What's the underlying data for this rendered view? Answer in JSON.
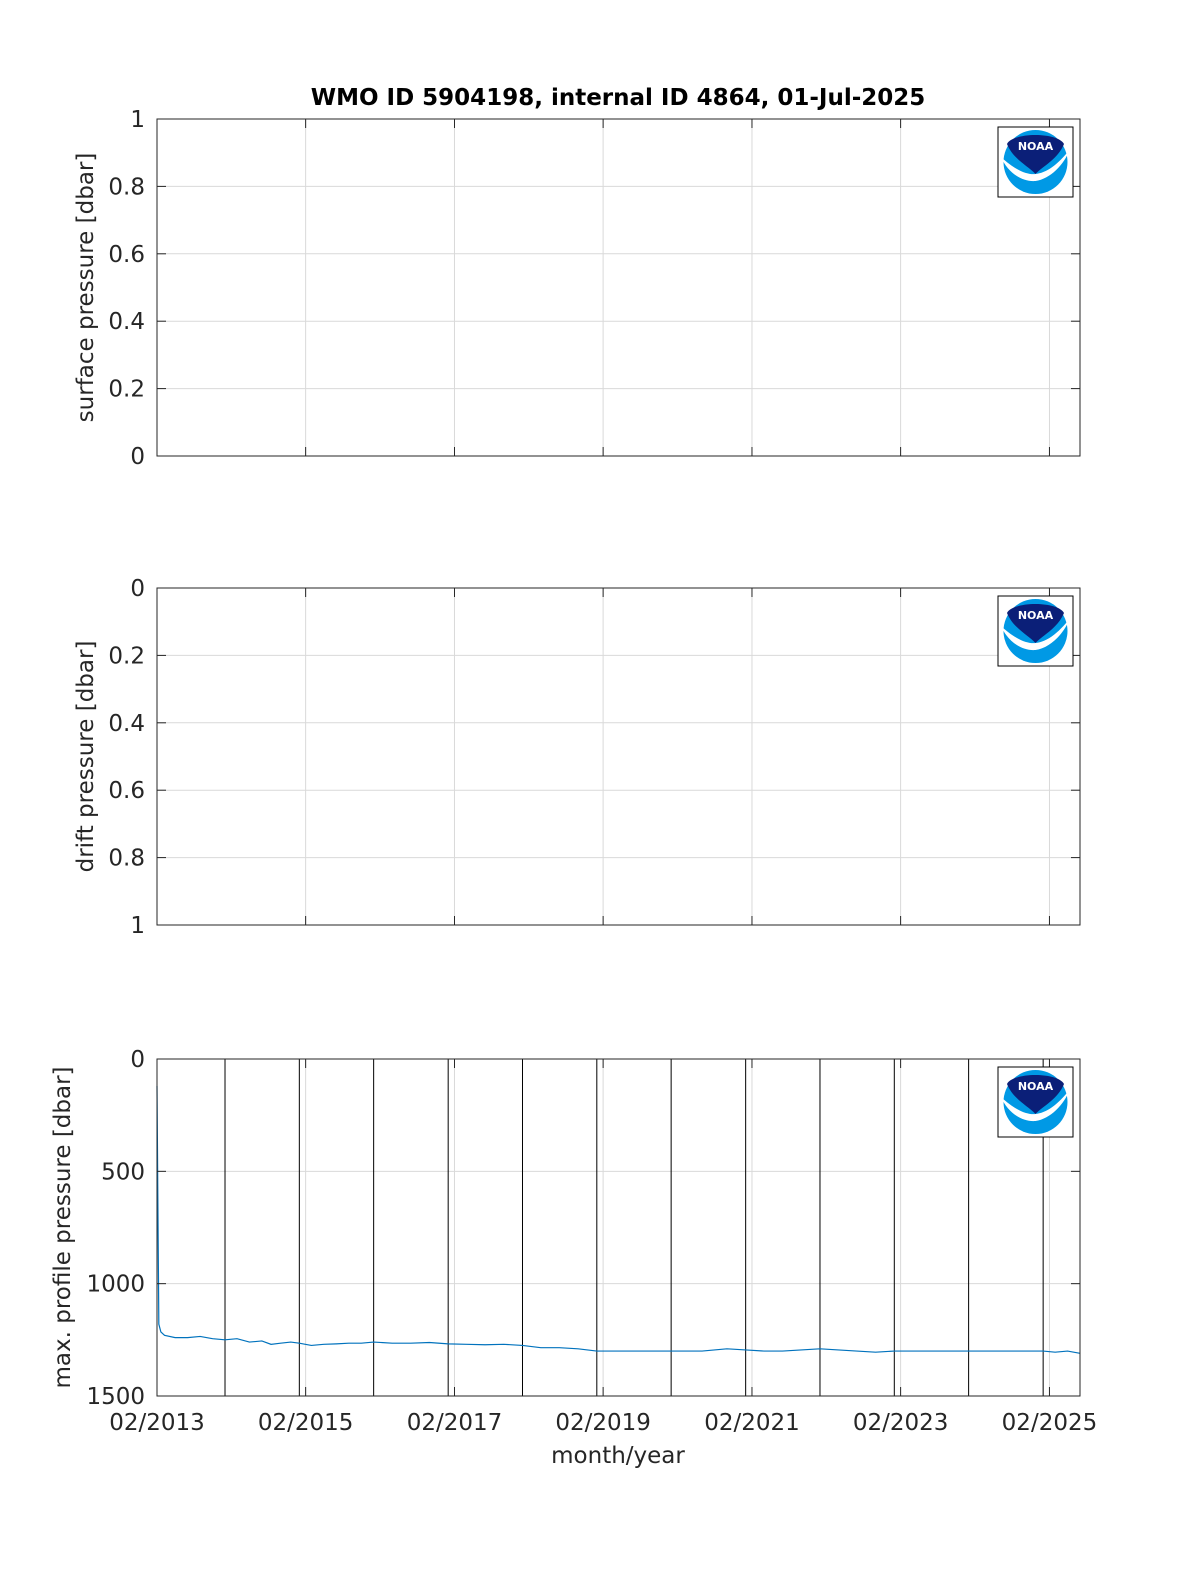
{
  "figure": {
    "title": "WMO ID 5904198, internal ID 4864, 01-Jul-2025",
    "xlabel": "month/year",
    "logo_text": "NOAA",
    "logo_icon": "noaa-logo-icon"
  },
  "chart_data": [
    {
      "type": "line",
      "name": "surface-pressure-panel",
      "ylabel": "surface pressure [dbar]",
      "ylim": [
        0,
        1
      ],
      "y_reversed": false,
      "yticks": [
        "0",
        "0.2",
        "0.4",
        "0.6",
        "0.8",
        "1"
      ],
      "ytick_values": [
        0,
        0.2,
        0.4,
        0.6,
        0.8,
        1
      ],
      "xlim": [
        "2013-02-01",
        "2025-07-01"
      ],
      "xticks": [
        "02/2013",
        "02/2015",
        "02/2017",
        "02/2019",
        "02/2021",
        "02/2023",
        "02/2025"
      ],
      "xtick_dates": [
        "2013-02-01",
        "2015-02-01",
        "2017-02-01",
        "2019-02-01",
        "2021-02-01",
        "2023-02-01",
        "2025-02-01"
      ],
      "show_xtick_labels": false,
      "grid": true,
      "series": [],
      "markers": []
    },
    {
      "type": "line",
      "name": "drift-pressure-panel",
      "ylabel": "drift pressure [dbar]",
      "ylim": [
        0,
        1
      ],
      "y_reversed": true,
      "yticks": [
        "0",
        "0.2",
        "0.4",
        "0.6",
        "0.8",
        "1"
      ],
      "ytick_values": [
        0,
        0.2,
        0.4,
        0.6,
        0.8,
        1
      ],
      "xlim": [
        "2013-02-01",
        "2025-07-01"
      ],
      "xticks": [
        "02/2013",
        "02/2015",
        "02/2017",
        "02/2019",
        "02/2021",
        "02/2023",
        "02/2025"
      ],
      "xtick_dates": [
        "2013-02-01",
        "2015-02-01",
        "2017-02-01",
        "2019-02-01",
        "2021-02-01",
        "2023-02-01",
        "2025-02-01"
      ],
      "show_xtick_labels": false,
      "grid": true,
      "series": [],
      "markers": []
    },
    {
      "type": "line",
      "name": "max-profile-pressure-panel",
      "ylabel": "max. profile pressure [dbar]",
      "ylim": [
        0,
        1500
      ],
      "y_reversed": true,
      "yticks": [
        "0",
        "500",
        "1000",
        "1500"
      ],
      "ytick_values": [
        0,
        500,
        1000,
        1500
      ],
      "xlim": [
        "2013-02-01",
        "2025-07-01"
      ],
      "xticks": [
        "02/2013",
        "02/2015",
        "02/2017",
        "02/2019",
        "02/2021",
        "02/2023",
        "02/2025"
      ],
      "xtick_dates": [
        "2013-02-01",
        "2015-02-01",
        "2017-02-01",
        "2019-02-01",
        "2021-02-01",
        "2023-02-01",
        "2025-02-01"
      ],
      "show_xtick_labels": true,
      "grid": true,
      "color": "#0072bd",
      "markers": [
        "2014-01-01",
        "2015-01-01",
        "2016-01-01",
        "2017-01-01",
        "2018-01-01",
        "2019-01-01",
        "2020-01-01",
        "2021-01-01",
        "2022-01-01",
        "2023-01-01",
        "2024-01-01",
        "2025-01-01"
      ],
      "series": [
        {
          "x": [
            "2013-02-01",
            "2013-02-05",
            "2013-02-10",
            "2013-02-20",
            "2013-03-10",
            "2013-05-01",
            "2013-07-01",
            "2013-09-01",
            "2013-11-01",
            "2014-01-01",
            "2014-03-01",
            "2014-05-01",
            "2014-07-01",
            "2014-08-15",
            "2014-10-01",
            "2014-11-20",
            "2015-01-01",
            "2015-03-01",
            "2015-05-01",
            "2015-07-01",
            "2015-09-01",
            "2015-11-01",
            "2016-01-01",
            "2016-04-01",
            "2016-07-01",
            "2016-10-01",
            "2017-01-01",
            "2017-04-01",
            "2017-07-01",
            "2017-10-01",
            "2018-01-01",
            "2018-04-01",
            "2018-07-01",
            "2018-10-01",
            "2019-01-01",
            "2019-06-01",
            "2020-01-01",
            "2020-06-01",
            "2020-10-01",
            "2021-01-01",
            "2021-04-01",
            "2021-07-01",
            "2021-10-01",
            "2022-01-01",
            "2022-04-01",
            "2022-07-01",
            "2022-10-01",
            "2023-01-01",
            "2023-06-01",
            "2024-01-01",
            "2024-06-01",
            "2025-01-01",
            "2025-03-01",
            "2025-05-01",
            "2025-07-01"
          ],
          "values": [
            120,
            600,
            1180,
            1215,
            1230,
            1240,
            1240,
            1235,
            1245,
            1250,
            1245,
            1260,
            1255,
            1270,
            1265,
            1260,
            1265,
            1275,
            1270,
            1268,
            1265,
            1265,
            1260,
            1265,
            1265,
            1262,
            1268,
            1270,
            1272,
            1270,
            1275,
            1285,
            1285,
            1290,
            1300,
            1300,
            1300,
            1300,
            1290,
            1295,
            1300,
            1300,
            1295,
            1290,
            1295,
            1300,
            1305,
            1300,
            1300,
            1300,
            1300,
            1300,
            1305,
            1300,
            1310
          ]
        }
      ]
    }
  ]
}
